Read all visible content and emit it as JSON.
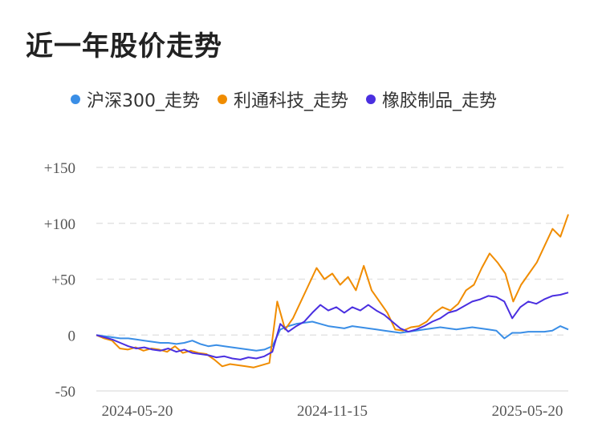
{
  "title": "近一年股价走势",
  "legend": [
    {
      "label": "沪深300_走势",
      "color": "#3a8ee6"
    },
    {
      "label": "利通科技_走势",
      "color": "#f08c00"
    },
    {
      "label": "橡胶制品_走势",
      "color": "#4a2fe0"
    }
  ],
  "chart_data": {
    "type": "line",
    "y_ticks": [
      "+150",
      "+100",
      "+50",
      "0",
      "-50"
    ],
    "y_tick_values": [
      150,
      100,
      50,
      0,
      -50
    ],
    "x_ticks": [
      "2024-05-20",
      "2024-11-15",
      "2025-05-20"
    ],
    "ylim": [
      -50,
      150
    ],
    "grid": "horizontal-dashed",
    "series": [
      {
        "name": "沪深300_走势",
        "color": "#3a8ee6",
        "values": [
          0,
          -1,
          -2,
          -3,
          -3,
          -4,
          -5,
          -6,
          -7,
          -7,
          -8,
          -7,
          -5,
          -8,
          -10,
          -9,
          -10,
          -11,
          -12,
          -13,
          -14,
          -13,
          -10,
          5,
          8,
          10,
          11,
          12,
          10,
          8,
          7,
          6,
          8,
          7,
          6,
          5,
          4,
          3,
          2,
          3,
          4,
          5,
          6,
          7,
          6,
          5,
          6,
          7,
          6,
          5,
          4,
          -3,
          2,
          2,
          3,
          3,
          3,
          4,
          8,
          5
        ]
      },
      {
        "name": "利通科技_走势",
        "color": "#f08c00",
        "values": [
          0,
          -3,
          -5,
          -12,
          -13,
          -11,
          -14,
          -12,
          -13,
          -15,
          -10,
          -16,
          -14,
          -16,
          -17,
          -22,
          -28,
          -26,
          -27,
          -28,
          -29,
          -27,
          -25,
          30,
          5,
          15,
          30,
          45,
          60,
          50,
          55,
          45,
          52,
          40,
          62,
          40,
          30,
          20,
          5,
          4,
          7,
          8,
          12,
          20,
          25,
          22,
          28,
          40,
          45,
          60,
          73,
          65,
          55,
          30,
          45,
          55,
          65,
          80,
          95,
          88,
          108
        ]
      },
      {
        "name": "橡胶制品_走势",
        "color": "#4a2fe0",
        "values": [
          0,
          -2,
          -4,
          -7,
          -10,
          -12,
          -11,
          -13,
          -14,
          -12,
          -15,
          -13,
          -16,
          -17,
          -18,
          -20,
          -19,
          -21,
          -22,
          -20,
          -21,
          -19,
          -15,
          10,
          3,
          8,
          12,
          20,
          27,
          22,
          25,
          20,
          25,
          22,
          27,
          22,
          18,
          12,
          6,
          3,
          5,
          8,
          12,
          15,
          20,
          22,
          26,
          30,
          32,
          35,
          34,
          30,
          15,
          25,
          30,
          28,
          32,
          35,
          36,
          38
        ]
      }
    ]
  }
}
